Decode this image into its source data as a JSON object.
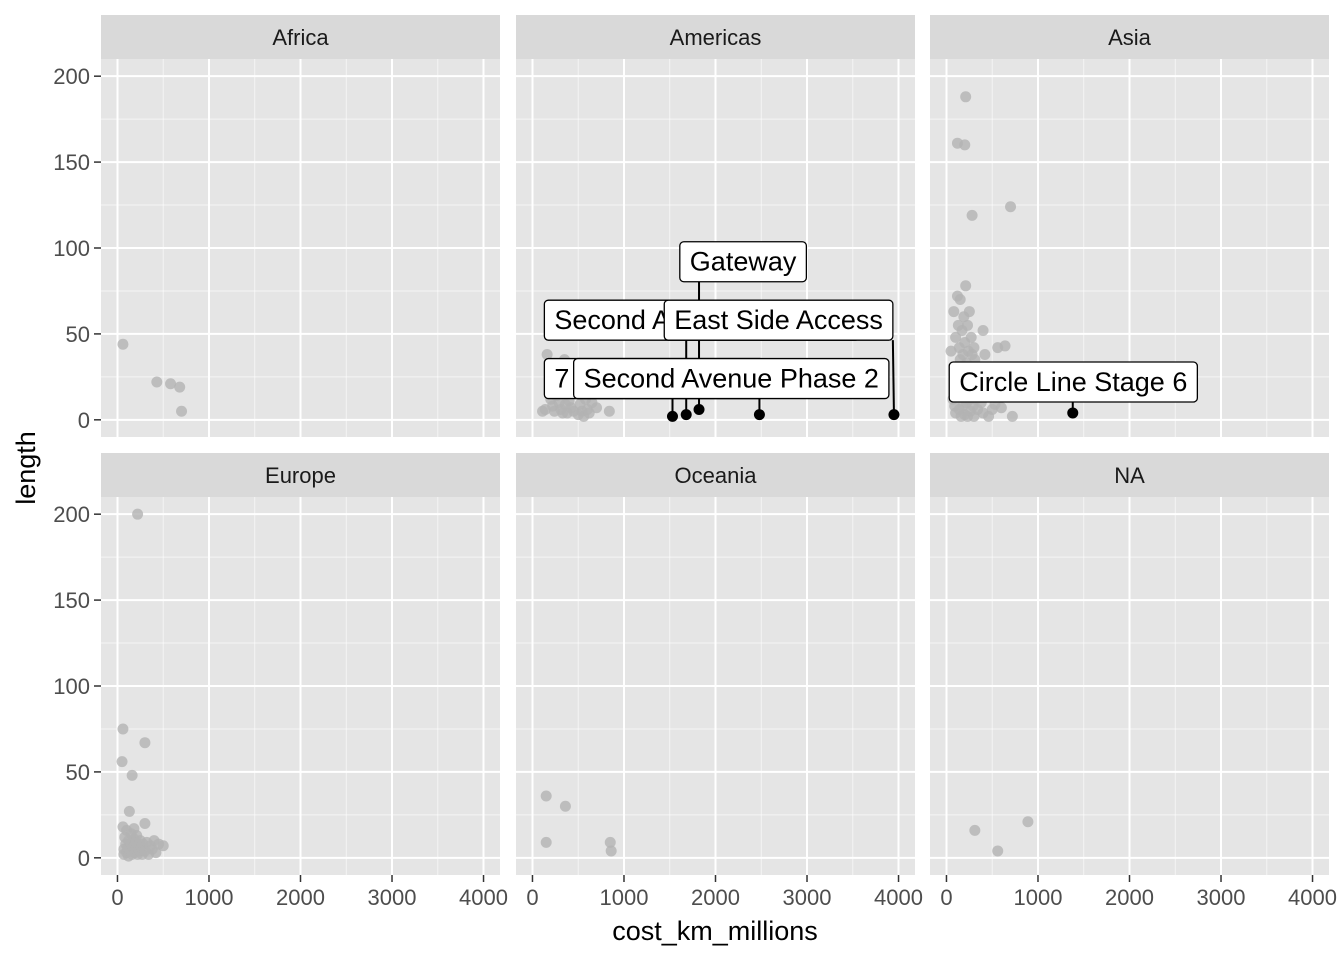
{
  "chart_data": {
    "type": "scatter",
    "facet_layout": "2x3",
    "xlabel": "cost_km_millions",
    "ylabel": "length",
    "xlim": [
      -180,
      4180
    ],
    "ylim": [
      -10,
      210
    ],
    "x_ticks": [
      0,
      1000,
      2000,
      3000,
      4000
    ],
    "y_ticks": [
      0,
      50,
      100,
      150,
      200
    ],
    "grid": true,
    "colors": {
      "panel_bg": "#e5e5e5",
      "strip_bg": "#d9d9d9",
      "grid": "#ffffff",
      "point_base": "#b3b3b3",
      "point_highlight": "#000000",
      "label_fill": "#ffffff",
      "label_border": "#000000"
    },
    "facets": [
      {
        "name": "Africa",
        "points": [
          [
            60,
            44
          ],
          [
            430,
            22
          ],
          [
            580,
            21
          ],
          [
            680,
            19
          ],
          [
            700,
            5
          ]
        ],
        "highlights": []
      },
      {
        "name": "Americas",
        "points": [
          [
            110,
            5
          ],
          [
            140,
            6
          ],
          [
            160,
            38
          ],
          [
            190,
            31
          ],
          [
            200,
            12
          ],
          [
            220,
            8
          ],
          [
            240,
            5
          ],
          [
            260,
            14
          ],
          [
            290,
            10
          ],
          [
            310,
            6
          ],
          [
            330,
            4
          ],
          [
            350,
            35
          ],
          [
            360,
            9
          ],
          [
            380,
            4
          ],
          [
            400,
            11
          ],
          [
            420,
            7
          ],
          [
            450,
            5
          ],
          [
            470,
            16
          ],
          [
            500,
            3
          ],
          [
            520,
            9
          ],
          [
            540,
            5
          ],
          [
            560,
            2
          ],
          [
            580,
            12
          ],
          [
            600,
            6
          ],
          [
            620,
            4
          ],
          [
            650,
            10
          ],
          [
            700,
            7
          ],
          [
            840,
            5
          ]
        ],
        "highlights": [
          {
            "x": 1530,
            "y": 2,
            "label": "7 Line Extension",
            "label_x": 130,
            "label_y": 24
          },
          {
            "x": 1680,
            "y": 3,
            "label": "Second Avenue Phase 1",
            "label_x": 130,
            "label_y": 58
          },
          {
            "x": 1820,
            "y": 6,
            "label": "Gateway",
            "label_x": 1610,
            "label_y": 92
          },
          {
            "x": 2480,
            "y": 3,
            "label": "Second Avenue Phase 2",
            "label_x": 450,
            "label_y": 24
          },
          {
            "x": 3950,
            "y": 3,
            "label": "East Side Access",
            "label_x": 1440,
            "label_y": 58
          }
        ]
      },
      {
        "name": "Asia",
        "points": [
          [
            50,
            40
          ],
          [
            70,
            12
          ],
          [
            80,
            63
          ],
          [
            90,
            8
          ],
          [
            100,
            4
          ],
          [
            100,
            48
          ],
          [
            110,
            30
          ],
          [
            120,
            161
          ],
          [
            120,
            72
          ],
          [
            130,
            22
          ],
          [
            130,
            55
          ],
          [
            140,
            6
          ],
          [
            140,
            42
          ],
          [
            150,
            35
          ],
          [
            150,
            70
          ],
          [
            160,
            2
          ],
          [
            160,
            25
          ],
          [
            170,
            15
          ],
          [
            170,
            52
          ],
          [
            180,
            8
          ],
          [
            180,
            38
          ],
          [
            190,
            28
          ],
          [
            190,
            60
          ],
          [
            200,
            160
          ],
          [
            200,
            45
          ],
          [
            200,
            3
          ],
          [
            210,
            188
          ],
          [
            210,
            78
          ],
          [
            210,
            18
          ],
          [
            220,
            33
          ],
          [
            220,
            10
          ],
          [
            230,
            55
          ],
          [
            230,
            2
          ],
          [
            240,
            40
          ],
          [
            240,
            22
          ],
          [
            250,
            63
          ],
          [
            250,
            12
          ],
          [
            260,
            30
          ],
          [
            260,
            5
          ],
          [
            270,
            48
          ],
          [
            270,
            16
          ],
          [
            280,
            119
          ],
          [
            280,
            38
          ],
          [
            290,
            8
          ],
          [
            290,
            26
          ],
          [
            300,
            42
          ],
          [
            300,
            2
          ],
          [
            310,
            35
          ],
          [
            320,
            12
          ],
          [
            330,
            20
          ],
          [
            340,
            6
          ],
          [
            360,
            30
          ],
          [
            380,
            10
          ],
          [
            400,
            52
          ],
          [
            400,
            4
          ],
          [
            420,
            38
          ],
          [
            440,
            17
          ],
          [
            460,
            2
          ],
          [
            480,
            24
          ],
          [
            500,
            6
          ],
          [
            530,
            9
          ],
          [
            560,
            42
          ],
          [
            580,
            27
          ],
          [
            600,
            7
          ],
          [
            640,
            43
          ],
          [
            700,
            124
          ],
          [
            720,
            2
          ]
        ],
        "highlights": [
          {
            "x": 1380,
            "y": 4,
            "label": "Circle Line Stage 6",
            "label_x": 30,
            "label_y": 22
          }
        ]
      },
      {
        "name": "Europe",
        "points": [
          [
            50,
            56
          ],
          [
            60,
            75
          ],
          [
            60,
            18
          ],
          [
            70,
            5
          ],
          [
            70,
            2
          ],
          [
            80,
            12
          ],
          [
            90,
            8
          ],
          [
            100,
            3
          ],
          [
            100,
            16
          ],
          [
            110,
            6
          ],
          [
            120,
            10
          ],
          [
            120,
            1
          ],
          [
            130,
            27
          ],
          [
            140,
            4
          ],
          [
            150,
            8
          ],
          [
            150,
            14
          ],
          [
            160,
            48
          ],
          [
            160,
            2
          ],
          [
            170,
            6
          ],
          [
            180,
            11
          ],
          [
            180,
            17
          ],
          [
            190,
            3
          ],
          [
            200,
            9
          ],
          [
            200,
            5
          ],
          [
            210,
            13
          ],
          [
            220,
            200
          ],
          [
            220,
            2
          ],
          [
            230,
            7
          ],
          [
            240,
            4
          ],
          [
            250,
            10
          ],
          [
            260,
            6
          ],
          [
            270,
            2
          ],
          [
            280,
            8
          ],
          [
            300,
            67
          ],
          [
            300,
            20
          ],
          [
            300,
            4
          ],
          [
            320,
            9
          ],
          [
            340,
            2
          ],
          [
            360,
            7
          ],
          [
            380,
            5
          ],
          [
            400,
            10
          ],
          [
            420,
            3
          ],
          [
            450,
            8
          ],
          [
            500,
            7
          ]
        ],
        "highlights": []
      },
      {
        "name": "Oceania",
        "points": [
          [
            150,
            36
          ],
          [
            150,
            9
          ],
          [
            360,
            30
          ],
          [
            850,
            9
          ],
          [
            860,
            4
          ]
        ],
        "highlights": []
      },
      {
        "name": "NA",
        "points": [
          [
            310,
            16
          ],
          [
            560,
            4
          ],
          [
            890,
            21
          ]
        ],
        "highlights": []
      }
    ]
  }
}
